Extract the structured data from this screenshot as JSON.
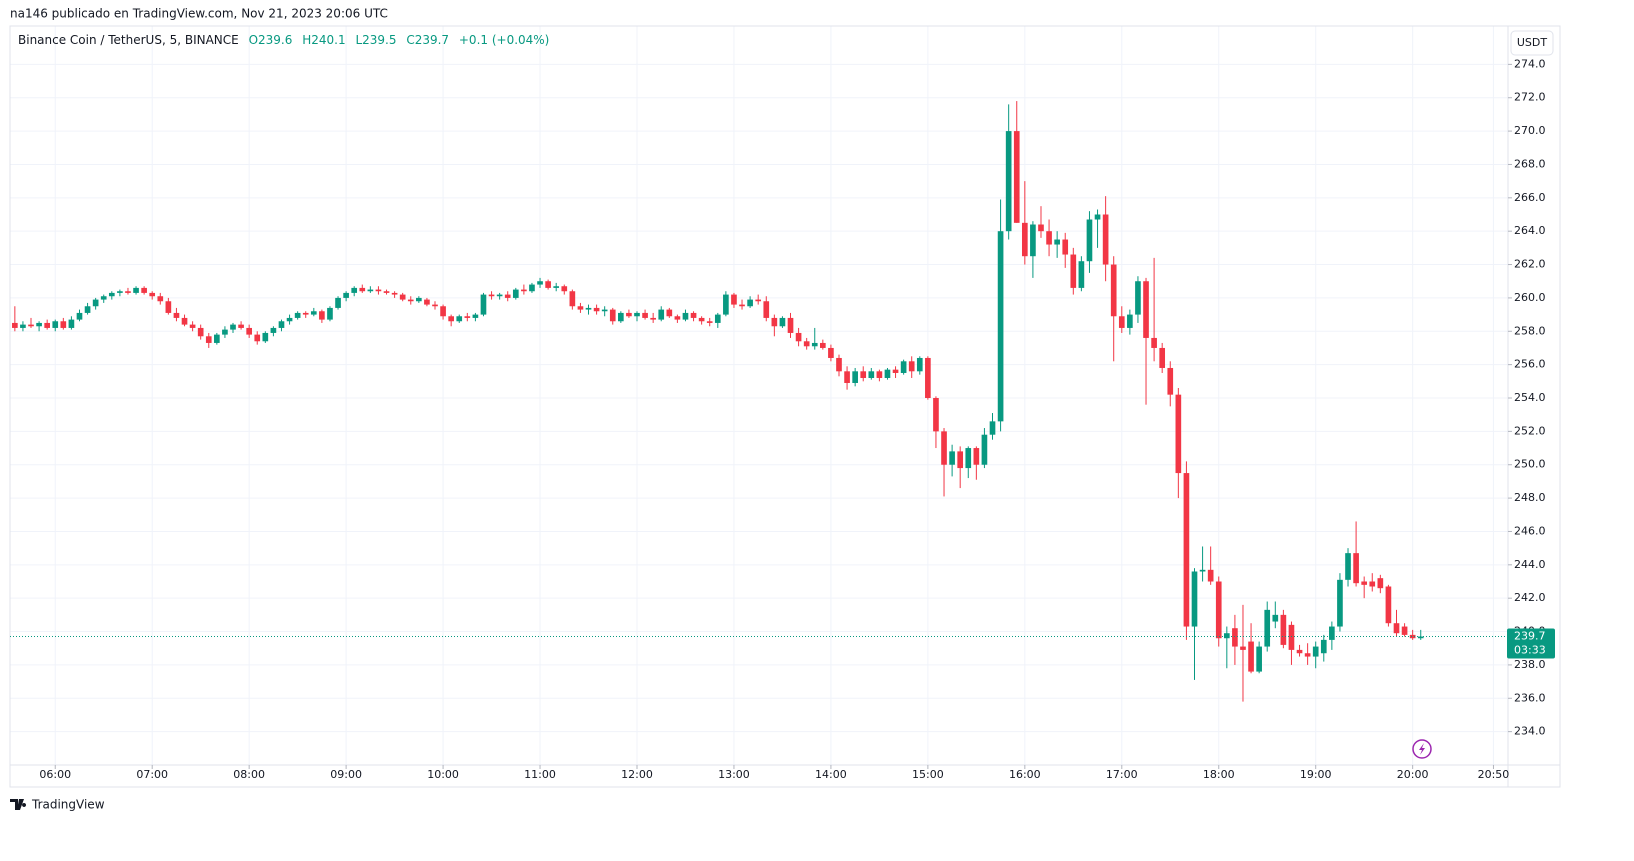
{
  "chart_data": {
    "type": "candlestick",
    "header": "na146 publicado en TradingView.com, Nov 21, 2023 20:06 UTC",
    "legend": {
      "symbol": "Binance Coin / TetherUS, 5, BINANCE",
      "open": "O239.6",
      "high": "H240.1",
      "low": "L239.5",
      "close": "C239.7",
      "change": "+0.1 (+0.04%)"
    },
    "currency": "USDT",
    "last_price": 239.7,
    "countdown": "03:33",
    "footer": "TradingView",
    "up_color": "#089981",
    "down_color": "#f23645",
    "grid": true,
    "xlim": [
      332,
      1259
    ],
    "ylim": [
      232,
      276.3
    ],
    "xticks": [
      {
        "value": 360,
        "label": "06:00"
      },
      {
        "value": 420,
        "label": "07:00"
      },
      {
        "value": 480,
        "label": "08:00"
      },
      {
        "value": 540,
        "label": "09:00"
      },
      {
        "value": 600,
        "label": "10:00"
      },
      {
        "value": 660,
        "label": "11:00"
      },
      {
        "value": 720,
        "label": "12:00"
      },
      {
        "value": 780,
        "label": "13:00"
      },
      {
        "value": 840,
        "label": "14:00"
      },
      {
        "value": 900,
        "label": "15:00"
      },
      {
        "value": 960,
        "label": "16:00"
      },
      {
        "value": 1020,
        "label": "17:00"
      },
      {
        "value": 1080,
        "label": "18:00"
      },
      {
        "value": 1140,
        "label": "19:00"
      },
      {
        "value": 1200,
        "label": "20:00"
      },
      {
        "value": 1250,
        "label": "20:50"
      }
    ],
    "yticks": [
      {
        "value": 234,
        "label": "234.0"
      },
      {
        "value": 236,
        "label": "236.0"
      },
      {
        "value": 238,
        "label": "238.0"
      },
      {
        "value": 240,
        "label": "240.0"
      },
      {
        "value": 242,
        "label": "242.0"
      },
      {
        "value": 244,
        "label": "244.0"
      },
      {
        "value": 246,
        "label": "246.0"
      },
      {
        "value": 248,
        "label": "248.0"
      },
      {
        "value": 250,
        "label": "250.0"
      },
      {
        "value": 252,
        "label": "252.0"
      },
      {
        "value": 254,
        "label": "254.0"
      },
      {
        "value": 256,
        "label": "256.0"
      },
      {
        "value": 258,
        "label": "258.0"
      },
      {
        "value": 260,
        "label": "260.0"
      },
      {
        "value": 262,
        "label": "262.0"
      },
      {
        "value": 264,
        "label": "264.0"
      },
      {
        "value": 266,
        "label": "266.0"
      },
      {
        "value": 268,
        "label": "268.0"
      },
      {
        "value": 270,
        "label": "270.0"
      },
      {
        "value": 272,
        "label": "272.0"
      },
      {
        "value": 274,
        "label": "274.0"
      }
    ],
    "candles": [
      [
        335,
        258.5,
        259.5,
        258.0,
        258.2
      ],
      [
        340,
        258.2,
        258.6,
        258.0,
        258.4
      ],
      [
        345,
        258.4,
        258.8,
        258.2,
        258.3
      ],
      [
        350,
        258.3,
        258.6,
        258.0,
        258.5
      ],
      [
        355,
        258.5,
        258.7,
        258.1,
        258.2
      ],
      [
        360,
        258.2,
        258.7,
        258.0,
        258.6
      ],
      [
        365,
        258.6,
        258.8,
        258.1,
        258.2
      ],
      [
        370,
        258.2,
        258.9,
        258.1,
        258.7
      ],
      [
        375,
        258.7,
        259.3,
        258.6,
        259.1
      ],
      [
        380,
        259.1,
        259.7,
        259.0,
        259.5
      ],
      [
        385,
        259.5,
        260.0,
        259.3,
        259.9
      ],
      [
        390,
        259.9,
        260.2,
        259.7,
        260.1
      ],
      [
        395,
        260.1,
        260.4,
        259.9,
        260.3
      ],
      [
        400,
        260.3,
        260.5,
        260.1,
        260.4
      ],
      [
        405,
        260.4,
        260.6,
        260.2,
        260.3
      ],
      [
        410,
        260.3,
        260.7,
        260.2,
        260.6
      ],
      [
        415,
        260.6,
        260.7,
        260.2,
        260.3
      ],
      [
        420,
        260.3,
        260.4,
        259.9,
        260.1
      ],
      [
        425,
        260.1,
        260.3,
        259.6,
        259.8
      ],
      [
        430,
        259.8,
        260.0,
        259.0,
        259.1
      ],
      [
        435,
        259.1,
        259.4,
        258.6,
        258.8
      ],
      [
        440,
        258.8,
        259.0,
        258.3,
        258.4
      ],
      [
        445,
        258.4,
        258.6,
        258.0,
        258.2
      ],
      [
        450,
        258.2,
        258.4,
        257.5,
        257.7
      ],
      [
        455,
        257.7,
        257.9,
        257.0,
        257.3
      ],
      [
        460,
        257.3,
        257.9,
        257.2,
        257.8
      ],
      [
        465,
        257.8,
        258.3,
        257.6,
        258.1
      ],
      [
        470,
        258.1,
        258.5,
        257.9,
        258.4
      ],
      [
        475,
        258.4,
        258.6,
        258.1,
        258.2
      ],
      [
        480,
        258.2,
        258.4,
        257.6,
        257.8
      ],
      [
        485,
        257.8,
        258.0,
        257.2,
        257.4
      ],
      [
        490,
        257.4,
        258.0,
        257.3,
        257.9
      ],
      [
        495,
        257.9,
        258.3,
        257.7,
        258.2
      ],
      [
        500,
        258.2,
        258.7,
        258.0,
        258.6
      ],
      [
        505,
        258.6,
        259.0,
        258.4,
        258.8
      ],
      [
        510,
        258.8,
        259.2,
        258.7,
        259.1
      ],
      [
        515,
        259.1,
        259.2,
        258.8,
        259.0
      ],
      [
        520,
        259.0,
        259.4,
        258.9,
        259.2
      ],
      [
        525,
        259.2,
        259.3,
        258.5,
        258.7
      ],
      [
        530,
        258.7,
        259.5,
        258.6,
        259.4
      ],
      [
        535,
        259.4,
        260.1,
        259.3,
        260.0
      ],
      [
        540,
        260.0,
        260.4,
        259.8,
        260.3
      ],
      [
        545,
        260.3,
        260.7,
        260.1,
        260.6
      ],
      [
        550,
        260.6,
        260.8,
        260.3,
        260.4
      ],
      [
        555,
        260.4,
        260.7,
        260.3,
        260.5
      ],
      [
        560,
        260.5,
        260.7,
        260.2,
        260.4
      ],
      [
        565,
        260.4,
        260.5,
        260.2,
        260.3
      ],
      [
        570,
        260.3,
        260.4,
        260.0,
        260.2
      ],
      [
        575,
        260.2,
        260.3,
        259.8,
        259.9
      ],
      [
        580,
        259.9,
        260.1,
        259.6,
        259.8
      ],
      [
        585,
        259.8,
        260.1,
        259.7,
        260.0
      ],
      [
        590,
        259.9,
        260.0,
        259.5,
        259.6
      ],
      [
        595,
        259.6,
        259.8,
        259.3,
        259.5
      ],
      [
        600,
        259.5,
        259.6,
        258.7,
        258.9
      ],
      [
        605,
        258.9,
        259.0,
        258.3,
        258.6
      ],
      [
        610,
        258.6,
        259.0,
        258.5,
        258.9
      ],
      [
        615,
        258.9,
        259.1,
        258.6,
        258.8
      ],
      [
        620,
        258.8,
        259.1,
        258.6,
        259.0
      ],
      [
        625,
        259.0,
        260.3,
        258.9,
        260.2
      ],
      [
        630,
        260.2,
        260.4,
        259.9,
        260.1
      ],
      [
        635,
        260.1,
        260.3,
        259.9,
        260.2
      ],
      [
        640,
        260.2,
        260.4,
        259.8,
        260.0
      ],
      [
        645,
        260.0,
        260.6,
        259.9,
        260.5
      ],
      [
        650,
        260.5,
        260.8,
        260.2,
        260.4
      ],
      [
        655,
        260.4,
        260.9,
        260.3,
        260.8
      ],
      [
        660,
        260.8,
        261.2,
        260.6,
        261.0
      ],
      [
        665,
        261.0,
        261.1,
        260.5,
        260.6
      ],
      [
        670,
        260.6,
        260.9,
        260.4,
        260.7
      ],
      [
        675,
        260.7,
        260.8,
        260.2,
        260.4
      ],
      [
        680,
        260.4,
        260.5,
        259.3,
        259.5
      ],
      [
        685,
        259.5,
        259.7,
        259.1,
        259.3
      ],
      [
        690,
        259.3,
        259.6,
        259.0,
        259.4
      ],
      [
        695,
        259.4,
        259.6,
        259.0,
        259.2
      ],
      [
        700,
        259.2,
        259.5,
        258.9,
        259.3
      ],
      [
        705,
        259.3,
        259.4,
        258.4,
        258.6
      ],
      [
        710,
        258.6,
        259.2,
        258.5,
        259.1
      ],
      [
        715,
        259.1,
        259.3,
        258.8,
        258.9
      ],
      [
        720,
        258.9,
        259.2,
        258.6,
        259.1
      ],
      [
        725,
        259.1,
        259.3,
        258.7,
        258.8
      ],
      [
        730,
        258.8,
        259.1,
        258.5,
        258.7
      ],
      [
        735,
        258.7,
        259.5,
        258.6,
        259.3
      ],
      [
        740,
        259.3,
        259.4,
        258.8,
        258.9
      ],
      [
        745,
        258.9,
        259.0,
        258.5,
        258.7
      ],
      [
        750,
        258.7,
        259.3,
        258.6,
        259.1
      ],
      [
        755,
        259.1,
        259.2,
        258.6,
        258.8
      ],
      [
        760,
        258.8,
        258.9,
        258.4,
        258.6
      ],
      [
        765,
        258.6,
        258.8,
        258.3,
        258.5
      ],
      [
        770,
        258.5,
        259.1,
        258.2,
        259.0
      ],
      [
        775,
        259.0,
        260.4,
        258.9,
        260.2
      ],
      [
        780,
        260.2,
        260.3,
        259.4,
        259.6
      ],
      [
        785,
        259.6,
        259.9,
        259.3,
        259.5
      ],
      [
        790,
        259.5,
        260.1,
        259.4,
        259.9
      ],
      [
        795,
        259.9,
        260.2,
        259.6,
        259.8
      ],
      [
        800,
        259.8,
        260.1,
        258.6,
        258.8
      ],
      [
        805,
        258.8,
        259.0,
        257.7,
        258.3
      ],
      [
        810,
        258.3,
        258.9,
        258.2,
        258.8
      ],
      [
        815,
        258.8,
        259.1,
        257.6,
        257.9
      ],
      [
        820,
        257.9,
        258.2,
        257.1,
        257.4
      ],
      [
        825,
        257.4,
        257.6,
        256.9,
        257.1
      ],
      [
        830,
        257.1,
        258.2,
        256.9,
        257.3
      ],
      [
        835,
        257.3,
        257.5,
        256.9,
        257.0
      ],
      [
        840,
        257.0,
        257.2,
        256.2,
        256.4
      ],
      [
        845,
        256.4,
        256.6,
        255.3,
        255.6
      ],
      [
        850,
        255.6,
        255.9,
        254.5,
        254.9
      ],
      [
        855,
        254.9,
        255.8,
        254.7,
        255.6
      ],
      [
        860,
        255.6,
        255.9,
        255.0,
        255.2
      ],
      [
        865,
        255.2,
        255.8,
        255.1,
        255.6
      ],
      [
        870,
        255.6,
        255.7,
        255.0,
        255.2
      ],
      [
        875,
        255.2,
        255.8,
        255.1,
        255.7
      ],
      [
        880,
        255.7,
        255.9,
        255.2,
        255.5
      ],
      [
        885,
        255.5,
        256.3,
        255.4,
        256.2
      ],
      [
        890,
        256.2,
        256.5,
        255.2,
        255.6
      ],
      [
        895,
        255.6,
        256.5,
        255.4,
        256.4
      ],
      [
        900,
        256.4,
        256.5,
        253.9,
        254.0
      ],
      [
        905,
        254.0,
        254.1,
        251.0,
        252.0
      ],
      [
        910,
        252.0,
        252.2,
        248.1,
        250.0
      ],
      [
        915,
        250.0,
        251.2,
        249.3,
        250.8
      ],
      [
        920,
        250.8,
        251.1,
        248.6,
        249.8
      ],
      [
        925,
        249.8,
        251.1,
        249.2,
        251.0
      ],
      [
        930,
        251.0,
        251.1,
        249.1,
        250.0
      ],
      [
        935,
        250.0,
        252.2,
        249.8,
        251.8
      ],
      [
        940,
        251.8,
        253.1,
        251.5,
        252.6
      ],
      [
        945,
        252.6,
        265.9,
        252.0,
        264.0
      ],
      [
        950,
        264.0,
        271.6,
        263.5,
        270.0
      ],
      [
        955,
        270.0,
        271.8,
        264.5,
        264.5
      ],
      [
        960,
        264.5,
        267.0,
        262.0,
        262.5
      ],
      [
        965,
        262.5,
        264.6,
        261.2,
        264.4
      ],
      [
        970,
        264.4,
        265.5,
        263.6,
        264.0
      ],
      [
        975,
        264.0,
        264.7,
        262.5,
        263.2
      ],
      [
        980,
        263.2,
        264.0,
        262.4,
        263.5
      ],
      [
        985,
        263.5,
        263.9,
        261.8,
        262.6
      ],
      [
        990,
        262.6,
        263.0,
        260.2,
        260.6
      ],
      [
        995,
        260.6,
        262.5,
        260.4,
        262.2
      ],
      [
        1000,
        262.2,
        265.2,
        261.5,
        264.7
      ],
      [
        1005,
        264.7,
        265.3,
        263.0,
        265.0
      ],
      [
        1010,
        265.0,
        266.1,
        261.0,
        262.0
      ],
      [
        1015,
        262.0,
        262.5,
        256.2,
        258.9
      ],
      [
        1020,
        258.9,
        259.5,
        257.9,
        258.2
      ],
      [
        1025,
        258.2,
        259.3,
        257.8,
        259.0
      ],
      [
        1030,
        259.0,
        261.3,
        258.5,
        261.0
      ],
      [
        1035,
        261.0,
        261.2,
        253.6,
        257.6
      ],
      [
        1040,
        257.6,
        262.4,
        256.2,
        257.0
      ],
      [
        1045,
        257.0,
        257.3,
        255.5,
        255.8
      ],
      [
        1050,
        255.8,
        256.2,
        253.5,
        254.2
      ],
      [
        1055,
        254.2,
        254.6,
        248.0,
        249.5
      ],
      [
        1060,
        249.5,
        250.2,
        239.5,
        240.3
      ],
      [
        1065,
        240.3,
        243.8,
        237.1,
        243.6
      ],
      [
        1070,
        243.6,
        245.1,
        243.0,
        243.7
      ],
      [
        1075,
        243.7,
        245.1,
        242.8,
        243.0
      ],
      [
        1080,
        243.0,
        243.3,
        239.1,
        239.6
      ],
      [
        1085,
        239.6,
        240.3,
        237.8,
        239.9
      ],
      [
        1090,
        240.2,
        241.0,
        238.0,
        239.1
      ],
      [
        1095,
        239.1,
        241.6,
        235.8,
        238.9
      ],
      [
        1100,
        239.4,
        240.5,
        237.5,
        237.6
      ],
      [
        1105,
        237.6,
        239.4,
        237.5,
        239.1
      ],
      [
        1110,
        239.1,
        241.8,
        238.8,
        241.3
      ],
      [
        1115,
        240.6,
        241.8,
        240.2,
        241.0
      ],
      [
        1120,
        241.0,
        241.3,
        239.0,
        239.2
      ],
      [
        1125,
        240.4,
        240.6,
        238.0,
        238.9
      ],
      [
        1130,
        238.9,
        239.2,
        238.5,
        238.7
      ],
      [
        1135,
        238.7,
        239.3,
        238.0,
        238.5
      ],
      [
        1140,
        238.5,
        239.4,
        237.8,
        239.1
      ],
      [
        1145,
        238.7,
        239.8,
        238.2,
        239.5
      ],
      [
        1150,
        239.5,
        240.6,
        238.9,
        240.3
      ],
      [
        1155,
        240.3,
        243.5,
        240.0,
        243.1
      ],
      [
        1160,
        243.1,
        245.0,
        242.7,
        244.7
      ],
      [
        1165,
        244.7,
        246.6,
        242.7,
        242.9
      ],
      [
        1170,
        243.0,
        243.3,
        242.0,
        242.8
      ],
      [
        1175,
        243.0,
        243.5,
        242.4,
        242.7
      ],
      [
        1180,
        243.2,
        243.4,
        242.3,
        242.6
      ],
      [
        1185,
        242.7,
        242.8,
        240.3,
        240.5
      ],
      [
        1190,
        240.5,
        241.3,
        239.7,
        239.9
      ],
      [
        1195,
        240.3,
        240.5,
        239.7,
        239.8
      ],
      [
        1200,
        239.8,
        240.1,
        239.5,
        239.6
      ],
      [
        1205,
        239.6,
        240.1,
        239.5,
        239.7
      ]
    ]
  }
}
